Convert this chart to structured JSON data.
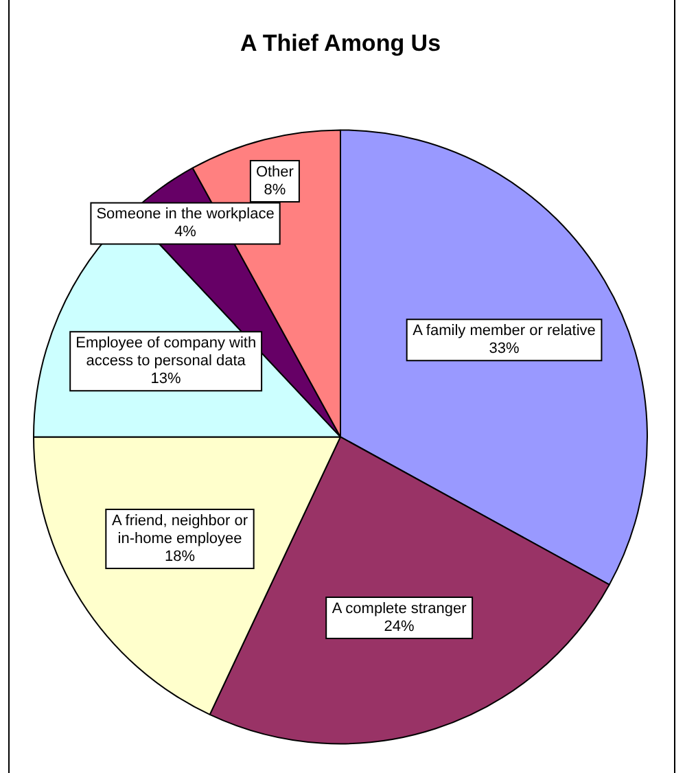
{
  "chart_data": {
    "type": "pie",
    "title": "A Thief Among Us",
    "categories": [
      "A family member or relative",
      "A complete stranger",
      "A friend, neighbor or in-home employee",
      "Employee of company with access to personal data",
      "Someone in the workplace",
      "Other"
    ],
    "values": [
      33,
      24,
      18,
      13,
      4,
      8
    ],
    "colors": [
      "#9999ff",
      "#993366",
      "#ffffcc",
      "#ccffff",
      "#660066",
      "#ff8080"
    ],
    "value_labels": [
      "33%",
      "24%",
      "18%",
      "13%",
      "4%",
      "8%"
    ],
    "legend": false
  }
}
